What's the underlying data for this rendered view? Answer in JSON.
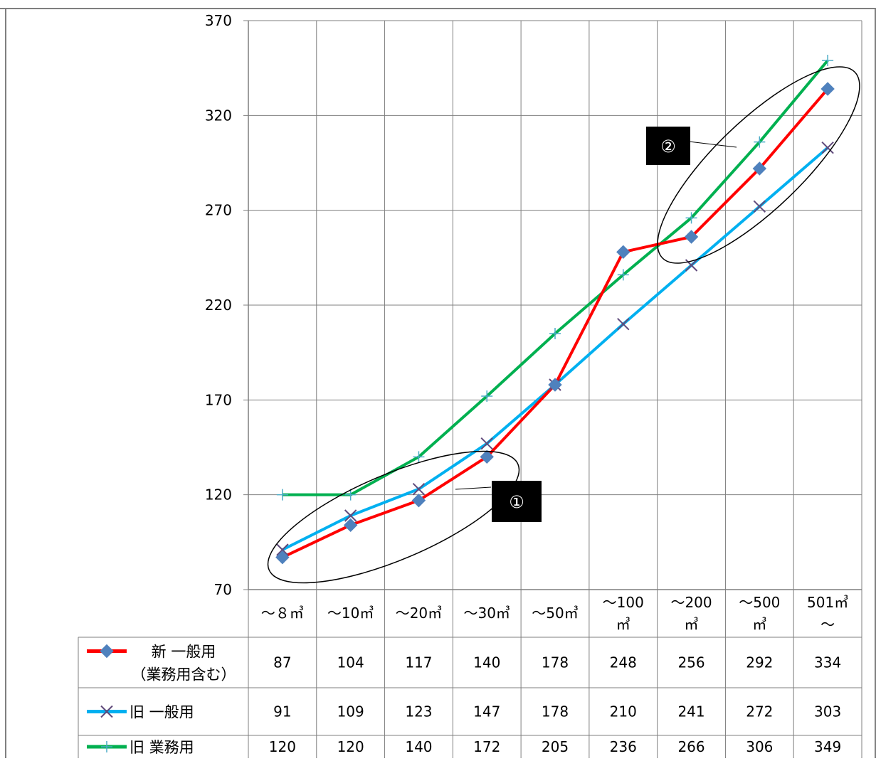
{
  "chart_data": {
    "type": "line",
    "title": "",
    "xlabel": "",
    "ylabel": "",
    "ylim": [
      70,
      370
    ],
    "yticks": [
      70,
      120,
      170,
      220,
      270,
      320,
      370
    ],
    "grid": true,
    "categories": [
      [
        "～８㎥"
      ],
      [
        "～10㎥"
      ],
      [
        "～20㎥"
      ],
      [
        "～30㎥"
      ],
      [
        "～50㎥"
      ],
      [
        "～100",
        "㎥"
      ],
      [
        "～200",
        "㎥"
      ],
      [
        "～500",
        "㎥"
      ],
      [
        "501㎥",
        "～"
      ]
    ],
    "series": [
      {
        "name_lines": [
          "新 一般用",
          "（業務用含む）"
        ],
        "color": "#ff0000",
        "marker": "diamond",
        "marker_color": "#4f81bd",
        "values": [
          87,
          104,
          117,
          140,
          178,
          248,
          256,
          292,
          334
        ]
      },
      {
        "name_lines": [
          "旧 一般用"
        ],
        "color": "#00b0f0",
        "marker": "x",
        "marker_color": "#604a7b",
        "values": [
          91,
          109,
          123,
          147,
          178,
          210,
          241,
          272,
          303
        ]
      },
      {
        "name_lines": [
          "旧 業務用"
        ],
        "color": "#00b050",
        "marker": "plus",
        "marker_color": "#4bacc6",
        "values": [
          120,
          120,
          140,
          172,
          205,
          236,
          266,
          306,
          349
        ]
      }
    ],
    "legend_position": "data-table-left",
    "annotations": [
      {
        "label": "①",
        "shape": "ellipse"
      },
      {
        "label": "②",
        "shape": "ellipse"
      }
    ]
  }
}
